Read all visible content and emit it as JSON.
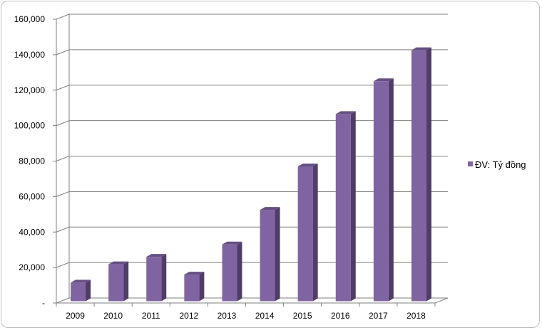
{
  "chart_data": {
    "type": "bar",
    "title": "",
    "xlabel": "",
    "ylabel": "",
    "categories": [
      "2009",
      "2010",
      "2011",
      "2012",
      "2013",
      "2014",
      "2015",
      "2016",
      "2017",
      "2018"
    ],
    "series": [
      {
        "name": "ĐV: Tỷ đồng",
        "values": [
          10500,
          20800,
          25000,
          15000,
          32000,
          51500,
          76000,
          105500,
          124000,
          141500
        ],
        "color": "#8064a2"
      }
    ],
    "ylim": [
      0,
      160000
    ],
    "yticks": [
      "-",
      "20,000",
      "40,000",
      "60,000",
      "80,000",
      "100,000",
      "120,000",
      "140,000",
      "160,000"
    ],
    "grid": true,
    "legend_position": "right",
    "style": "3d-column"
  }
}
